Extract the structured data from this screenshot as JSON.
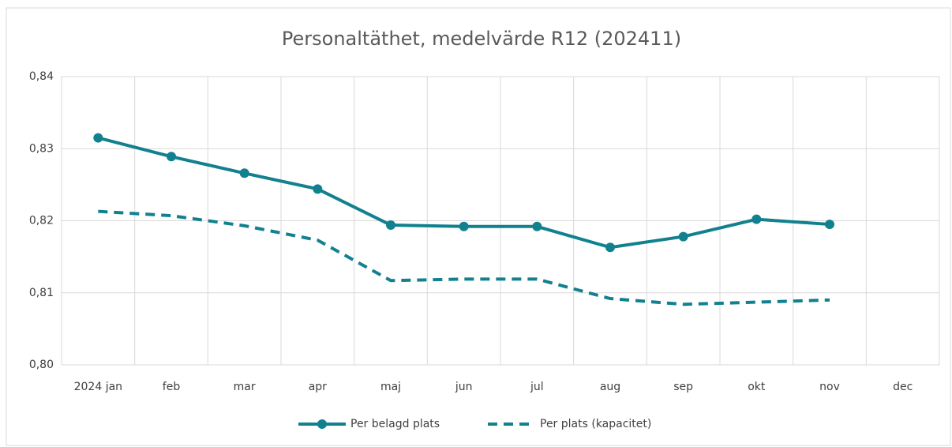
{
  "chart_data": {
    "type": "line",
    "title": "Personaltäthet, medelvärde R12 (202411)",
    "categories": [
      "2024 jan",
      "feb",
      "mar",
      "apr",
      "maj",
      "jun",
      "jul",
      "aug",
      "sep",
      "okt",
      "nov",
      "dec"
    ],
    "series": [
      {
        "name": "Per belagd plats",
        "color": "#12818f",
        "dash": false,
        "markers": true,
        "values": [
          0.8315,
          0.8289,
          0.8266,
          0.8244,
          0.8194,
          0.8192,
          0.8192,
          0.8163,
          0.8178,
          0.8202,
          0.8195,
          null
        ]
      },
      {
        "name": "Per plats (kapacitet)",
        "color": "#12818f",
        "dash": true,
        "markers": false,
        "values": [
          0.8213,
          0.8207,
          0.8193,
          0.8173,
          0.8117,
          0.8119,
          0.8119,
          0.8092,
          0.8084,
          0.8087,
          0.809,
          null
        ]
      }
    ],
    "ylim": [
      0.8,
      0.84
    ],
    "yticks": [
      {
        "value": 0.8,
        "label": "0,80"
      },
      {
        "value": 0.81,
        "label": "0,81"
      },
      {
        "value": 0.82,
        "label": "0,82"
      },
      {
        "value": 0.83,
        "label": "0,83"
      },
      {
        "value": 0.84,
        "label": "0,84"
      }
    ],
    "grid": true,
    "legend": "bottom"
  }
}
